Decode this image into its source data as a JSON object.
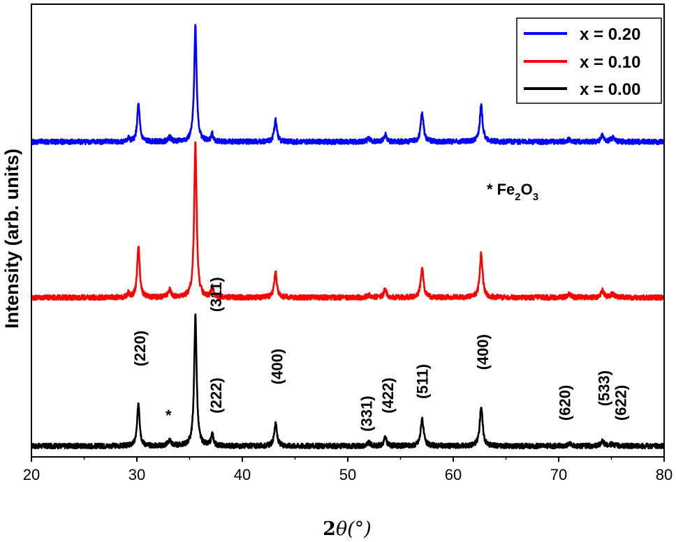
{
  "chart_data": {
    "type": "line",
    "title": "",
    "xlabel_main": "2",
    "xlabel_theta": "θ",
    "xlabel_unit": "(°)",
    "ylabel": "Intensity (arb. units)",
    "xlim": [
      20,
      80
    ],
    "xticks": [
      20,
      30,
      40,
      50,
      60,
      70,
      80
    ],
    "yticks_labeled": false,
    "grid": false,
    "legend_position": "top-right",
    "peaks": [
      {
        "two_theta": 29.2,
        "w": 0.1
      },
      {
        "two_theta": 30.15,
        "w": 0.14
      },
      {
        "two_theta": 33.1,
        "w": 0.18
      },
      {
        "two_theta": 35.55,
        "w": 0.14
      },
      {
        "two_theta": 37.15,
        "w": 0.13
      },
      {
        "two_theta": 43.15,
        "w": 0.15
      },
      {
        "two_theta": 52.0,
        "w": 0.2
      },
      {
        "two_theta": 53.55,
        "w": 0.15
      },
      {
        "two_theta": 57.05,
        "w": 0.16
      },
      {
        "two_theta": 62.65,
        "w": 0.16
      },
      {
        "two_theta": 71.0,
        "w": 0.2
      },
      {
        "two_theta": 74.15,
        "w": 0.18
      },
      {
        "two_theta": 75.1,
        "w": 0.2
      }
    ],
    "series": [
      {
        "name": "x = 0.00",
        "color": "#000000",
        "baseline": 0.0,
        "peak_heights": [
          0.0,
          0.6,
          0.08,
          1.8,
          0.16,
          0.32,
          0.04,
          0.12,
          0.38,
          0.55,
          0.03,
          0.07,
          0.03
        ]
      },
      {
        "name": "x = 0.10",
        "color": "#ff0000",
        "baseline": 2.05,
        "peak_heights": [
          0.06,
          0.7,
          0.1,
          2.13,
          0.14,
          0.35,
          0.03,
          0.12,
          0.4,
          0.6,
          0.05,
          0.1,
          0.05
        ]
      },
      {
        "name": "x = 0.20",
        "color": "#0000ff",
        "baseline": 4.2,
        "peak_heights": [
          0.05,
          0.52,
          0.06,
          1.6,
          0.1,
          0.3,
          0.04,
          0.1,
          0.4,
          0.5,
          0.03,
          0.08,
          0.05
        ]
      }
    ],
    "ylim": [
      -0.15,
      6.1
    ],
    "legend": [
      "x = 0.20",
      "x = 0.10",
      "x = 0.00"
    ],
    "annotations": {
      "impurity_note_star": "*",
      "impurity_note_fe": "Fe",
      "impurity_note_sub1": "2",
      "impurity_note_o": "O",
      "impurity_note_sub2": "3",
      "star_marker": {
        "text": "*",
        "two_theta": 33.0,
        "height": 0.35
      },
      "hkl_labels": [
        {
          "text": "(220)",
          "two_theta": 30.3,
          "height": 1.1
        },
        {
          "text": "(311)",
          "two_theta": 37.5,
          "height": 1.85
        },
        {
          "text": "(222)",
          "two_theta": 37.5,
          "height": 0.45
        },
        {
          "text": "(400)",
          "two_theta": 43.3,
          "height": 0.85
        },
        {
          "text": "(331)",
          "two_theta": 51.8,
          "height": 0.2
        },
        {
          "text": "(422)",
          "two_theta": 53.8,
          "height": 0.45
        },
        {
          "text": "(511)",
          "two_theta": 57.1,
          "height": 0.65
        },
        {
          "text": "(400)",
          "two_theta": 62.8,
          "height": 1.05
        },
        {
          "text": "(620)",
          "two_theta": 70.6,
          "height": 0.35
        },
        {
          "text": "(533)",
          "two_theta": 74.3,
          "height": 0.55
        },
        {
          "text": "(622)",
          "two_theta": 75.9,
          "height": 0.35
        }
      ]
    }
  }
}
